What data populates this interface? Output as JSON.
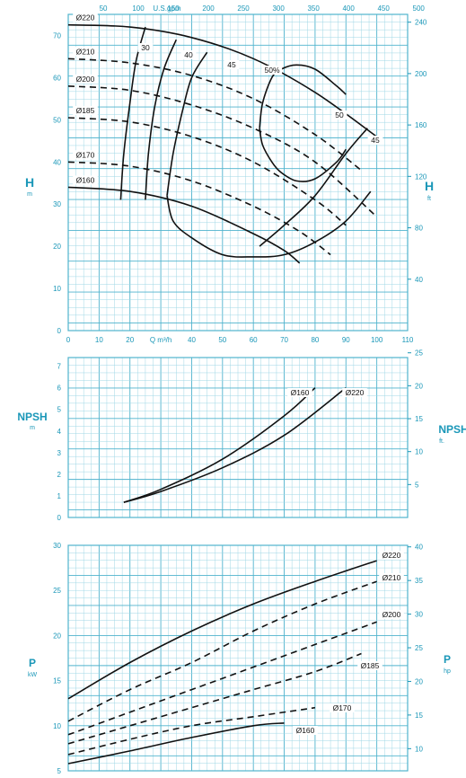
{
  "chart_data": [
    {
      "type": "line",
      "x_top_label": "U.S.gpm",
      "x_top_ticks": [
        "50",
        "100",
        "150",
        "200",
        "250",
        "300",
        "350",
        "400",
        "450",
        "500"
      ],
      "x_bottom_label": "Q m³/h",
      "x_bottom_ticks": [
        "0",
        "10",
        "20",
        "30",
        "40",
        "50",
        "60",
        "70",
        "80",
        "90",
        "100",
        "110"
      ],
      "xlim": [
        0,
        110
      ],
      "ylabel_left": "H",
      "ylabel_left_unit": "m",
      "ylim_left": [
        0,
        75
      ],
      "y_left_ticks": [
        "0",
        "10",
        "20",
        "30",
        "40",
        "50",
        "60",
        "70"
      ],
      "ylabel_right": "H",
      "ylabel_right_unit": "ft",
      "y_right_ticks": [
        "40",
        "80",
        "120",
        "160",
        "200",
        "240"
      ],
      "series": [
        {
          "name": "Ø220",
          "style": "solid",
          "x": [
            0,
            20,
            40,
            60,
            80,
            100
          ],
          "y": [
            72.5,
            72,
            69.5,
            64.5,
            56.5,
            46
          ]
        },
        {
          "name": "Ø210",
          "style": "dashed",
          "x": [
            0,
            20,
            40,
            60,
            80,
            95
          ],
          "y": [
            64.5,
            63.5,
            60.5,
            55,
            46.5,
            38
          ]
        },
        {
          "name": "Ø200",
          "style": "dashed",
          "x": [
            0,
            20,
            40,
            60,
            80,
            100
          ],
          "y": [
            58,
            57,
            53.5,
            48,
            40,
            27
          ]
        },
        {
          "name": "Ø185",
          "style": "dashed",
          "x": [
            0,
            20,
            40,
            60,
            80,
            90
          ],
          "y": [
            50.5,
            49.5,
            46,
            40,
            31,
            25
          ]
        },
        {
          "name": "Ø170",
          "style": "dashed",
          "x": [
            0,
            20,
            40,
            60,
            75,
            85
          ],
          "y": [
            40,
            39,
            35.5,
            29.5,
            23.5,
            18
          ]
        },
        {
          "name": "Ø160",
          "style": "solid",
          "x": [
            0,
            20,
            40,
            60,
            70,
            75
          ],
          "y": [
            34,
            33,
            29.5,
            23,
            19,
            16
          ]
        }
      ],
      "iso_efficiency": [
        {
          "label": "30",
          "x": [
            17,
            18,
            20,
            22,
            25
          ],
          "y": [
            31,
            42,
            54,
            64,
            72
          ]
        },
        {
          "label": "40",
          "x": [
            25,
            26,
            28,
            31,
            35
          ],
          "y": [
            31,
            42,
            53,
            62,
            69
          ]
        },
        {
          "label": "45",
          "x": [
            32,
            34,
            37,
            40,
            45
          ],
          "y": [
            32,
            42,
            52,
            60,
            66
          ]
        },
        {
          "label": "50%",
          "x": [
            62,
            63,
            66,
            69,
            74,
            80,
            87,
            90
          ],
          "y": [
            48,
            54,
            60,
            62,
            63,
            62,
            58,
            56
          ]
        },
        {
          "label": "50",
          "x": [
            62,
            63,
            66,
            69,
            74,
            80,
            87,
            90
          ],
          "y": [
            48,
            44,
            40,
            37.5,
            35.5,
            36,
            40,
            43
          ]
        },
        {
          "label": "45",
          "x": [
            32,
            34,
            40,
            50,
            60,
            70,
            80,
            90,
            98
          ],
          "y": [
            32,
            26,
            22,
            18,
            17.5,
            18,
            21,
            26,
            33
          ]
        },
        {
          "label": "",
          "x": [
            62,
            70,
            80,
            90,
            97
          ],
          "y": [
            20,
            25,
            32,
            42,
            48
          ]
        }
      ]
    },
    {
      "type": "line",
      "ylabel_left": "NPSH",
      "ylabel_left_unit": "m",
      "ylim_left": [
        0,
        7.4
      ],
      "y_left_ticks": [
        "0",
        "1",
        "2",
        "3",
        "4",
        "5",
        "6",
        "7"
      ],
      "ylabel_right": "NPSH",
      "ylabel_right_unit": "ft.",
      "y_right_ticks": [
        "5",
        "10",
        "15",
        "20",
        "25"
      ],
      "series": [
        {
          "name": "Ø160",
          "style": "solid",
          "x": [
            18,
            30,
            50,
            70,
            80
          ],
          "y": [
            0.7,
            1.3,
            2.7,
            4.7,
            6.0
          ]
        },
        {
          "name": "Ø220",
          "style": "solid",
          "x": [
            18,
            30,
            50,
            70,
            90
          ],
          "y": [
            0.7,
            1.2,
            2.3,
            3.8,
            6.0
          ]
        }
      ]
    },
    {
      "type": "line",
      "ylabel_left": "P",
      "ylabel_left_unit": "kW",
      "ylim_left": [
        5,
        30
      ],
      "y_left_ticks": [
        "5",
        "10",
        "15",
        "20",
        "25",
        "30"
      ],
      "ylabel_right": "P",
      "ylabel_right_unit": "hp",
      "y_right_ticks": [
        "10",
        "15",
        "20",
        "25",
        "30",
        "35",
        "40"
      ],
      "series": [
        {
          "name": "Ø220",
          "style": "solid",
          "x": [
            0,
            20,
            40,
            60,
            80,
            100
          ],
          "y": [
            13,
            17,
            20.5,
            23.5,
            26,
            28.3
          ]
        },
        {
          "name": "Ø210",
          "style": "dashed",
          "x": [
            0,
            20,
            40,
            60,
            80,
            100
          ],
          "y": [
            10.5,
            14,
            17,
            20.5,
            23.5,
            26
          ]
        },
        {
          "name": "Ø200",
          "style": "dashed",
          "x": [
            0,
            20,
            40,
            60,
            80,
            100
          ],
          "y": [
            9,
            11.5,
            14,
            16.5,
            19,
            21.5
          ]
        },
        {
          "name": "Ø185",
          "style": "dashed",
          "x": [
            0,
            20,
            40,
            60,
            80,
            95
          ],
          "y": [
            8,
            10,
            12,
            14,
            16,
            18
          ]
        },
        {
          "name": "Ø170",
          "style": "dashed",
          "x": [
            0,
            20,
            40,
            60,
            80
          ],
          "y": [
            6.8,
            8.5,
            10,
            11,
            12
          ]
        },
        {
          "name": "Ø160",
          "style": "solid",
          "x": [
            0,
            20,
            40,
            60,
            70
          ],
          "y": [
            5.8,
            7.2,
            8.7,
            10,
            10.3
          ]
        }
      ]
    }
  ],
  "colors": {
    "grid_minor": "#9fd7e6",
    "grid_major": "#4fb3cd",
    "text": "#1a97b8",
    "line": "#111111",
    "label_bg": "#ffffff"
  }
}
